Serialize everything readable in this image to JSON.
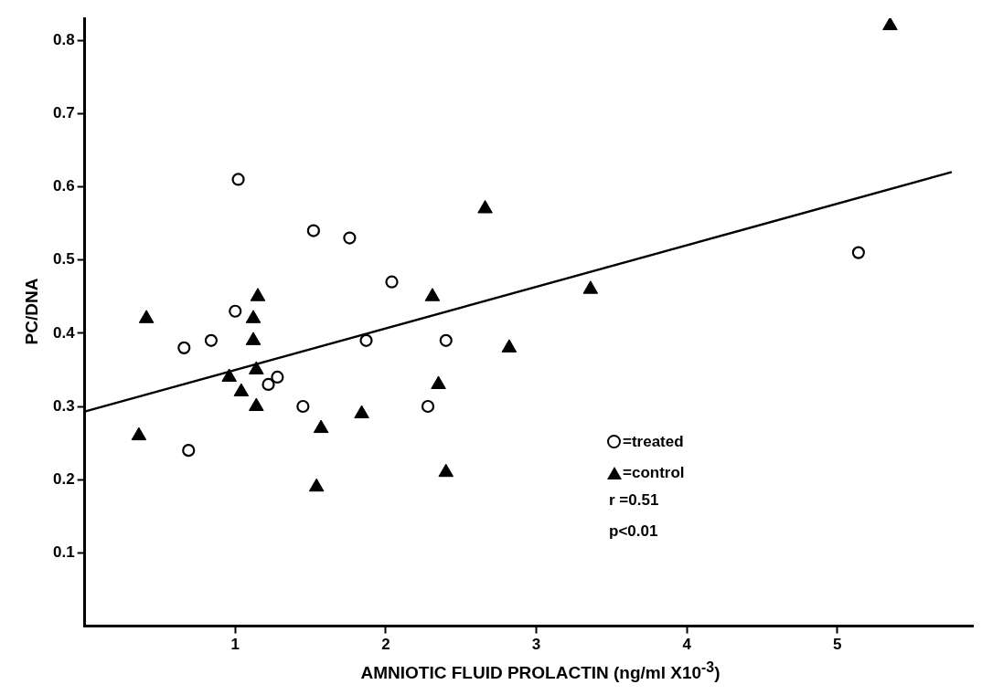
{
  "chart_data": {
    "type": "scatter",
    "xlabel": "AMNIOTIC FLUID PROLACTIN (ng/ml X10$^{-3}$)",
    "ylabel": "PC/DNA",
    "xlim": [
      0,
      5.9
    ],
    "xticks": [
      1,
      2,
      3,
      4,
      5
    ],
    "ylim": [
      0,
      0.83
    ],
    "yticks": [
      0.1,
      0.2,
      0.3,
      0.4,
      0.5,
      0.6,
      0.7,
      0.8
    ],
    "grid": false,
    "legend": "bottom right",
    "annotations": [
      "r =0.51",
      "p<0.01"
    ],
    "series": [
      {
        "name": "=treated",
        "color": "#000000",
        "marker": "circle",
        "x": [
          1.02,
          1.52,
          1.76,
          2.04,
          1.0,
          0.66,
          0.84,
          1.87,
          2.4,
          1.28,
          1.22,
          1.45,
          2.28,
          0.69,
          5.14
        ],
        "values": [
          0.61,
          0.54,
          0.53,
          0.47,
          0.43,
          0.38,
          0.39,
          0.39,
          0.39,
          0.34,
          0.33,
          0.3,
          0.3,
          0.24,
          0.51
        ]
      },
      {
        "name": "=control",
        "color": "#000000",
        "marker": "triangle",
        "x": [
          0.36,
          0.41,
          1.15,
          1.12,
          1.12,
          1.14,
          0.96,
          1.04,
          1.14,
          1.57,
          1.54,
          1.84,
          2.31,
          2.35,
          2.4,
          2.66,
          2.82,
          3.36,
          5.35
        ],
        "values": [
          0.26,
          0.42,
          0.45,
          0.42,
          0.39,
          0.35,
          0.34,
          0.32,
          0.3,
          0.27,
          0.19,
          0.29,
          0.45,
          0.33,
          0.21,
          0.57,
          0.38,
          0.46,
          0.82
        ]
      },
      {
        "type": "line",
        "color": "#000000",
        "marker": "none",
        "line_style": "solid",
        "x": [
          0,
          5.76
        ],
        "values": [
          0.293,
          0.62
        ]
      }
    ]
  }
}
